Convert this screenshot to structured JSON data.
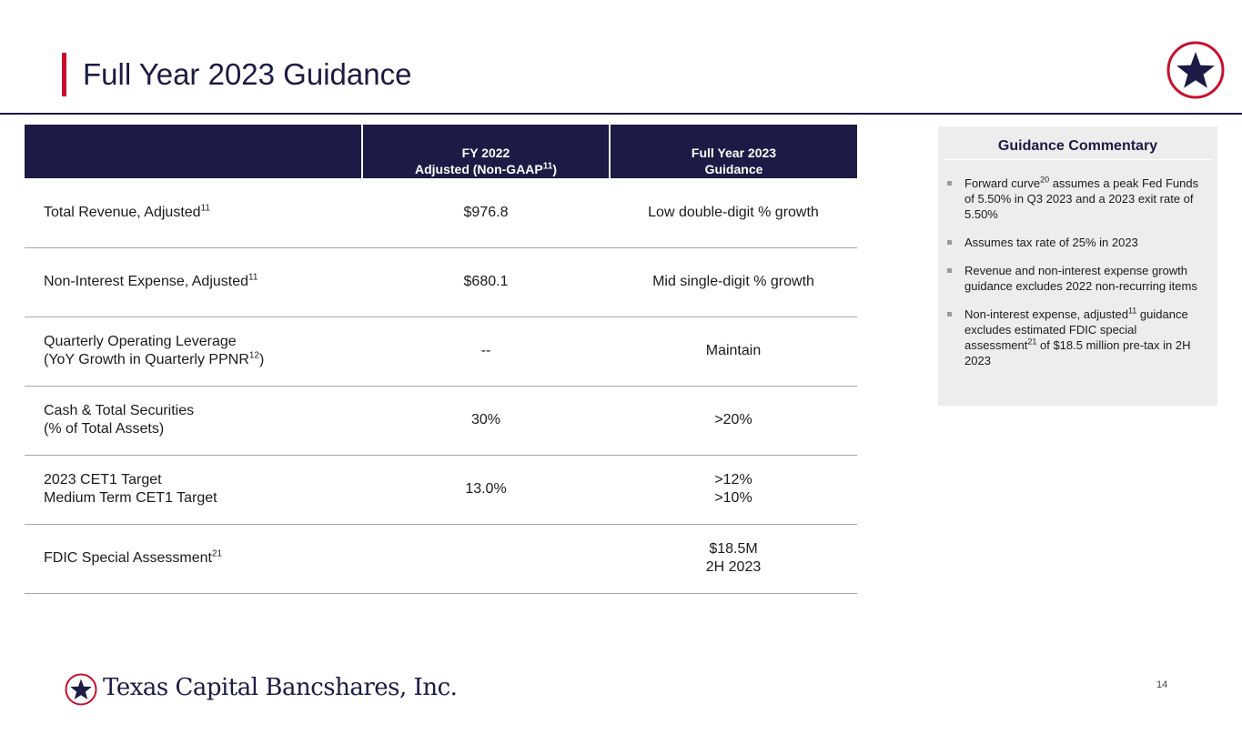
{
  "header": {
    "title": "Full Year 2023 Guidance",
    "logo_icon": "star-circle-icon"
  },
  "colors": {
    "navy": "#1b1b45",
    "accent_red": "#c8102e",
    "panel_gray": "#ededed",
    "rule_gray": "#a6a6a6"
  },
  "table": {
    "headers": {
      "fy2022": {
        "line1": "FY 2022",
        "line2": "Adjusted (Non-GAAP",
        "sup": "11",
        "close": ")"
      },
      "fy2023": {
        "line1": "Full Year 2023",
        "line2": "Guidance"
      }
    },
    "rows": [
      {
        "metric": [
          "Total Revenue, Adjusted"
        ],
        "metric_sup": [
          "11"
        ],
        "metric_tail": [
          ""
        ],
        "fy2022": "$976.8",
        "guidance": [
          "Low double-digit % growth"
        ]
      },
      {
        "metric": [
          "Non-Interest Expense, Adjusted"
        ],
        "metric_sup": [
          "11"
        ],
        "metric_tail": [
          ""
        ],
        "fy2022": "$680.1",
        "guidance": [
          "Mid single-digit % growth"
        ]
      },
      {
        "metric": [
          "Quarterly Operating Leverage",
          "(YoY Growth in Quarterly PPNR"
        ],
        "metric_sup": [
          "",
          "12"
        ],
        "metric_tail": [
          "",
          ")"
        ],
        "fy2022": "--",
        "guidance": [
          "Maintain"
        ]
      },
      {
        "metric": [
          "Cash & Total Securities",
          "(% of Total Assets)"
        ],
        "metric_sup": [
          "",
          ""
        ],
        "metric_tail": [
          "",
          ""
        ],
        "fy2022": "30%",
        "guidance": [
          ">20%"
        ]
      },
      {
        "metric": [
          "2023 CET1 Target",
          "Medium Term CET1 Target"
        ],
        "metric_sup": [
          "",
          ""
        ],
        "metric_tail": [
          "",
          ""
        ],
        "fy2022": "13.0%",
        "guidance": [
          ">12%",
          ">10%"
        ]
      },
      {
        "metric": [
          "FDIC Special Assessment"
        ],
        "metric_sup": [
          "21"
        ],
        "metric_tail": [
          ""
        ],
        "fy2022": "",
        "guidance": [
          "$18.5M",
          "2H 2023"
        ]
      }
    ]
  },
  "commentary": {
    "title": "Guidance Commentary",
    "bullets": [
      {
        "a": "Forward curve",
        "sup": "20",
        "b": " assumes a peak Fed Funds of 5.50% in Q3 2023 and a 2023 exit rate of 5.50%",
        "sup2": "",
        "c": ""
      },
      {
        "a": "Assumes tax rate of 25% in 2023",
        "sup": "",
        "b": "",
        "sup2": "",
        "c": ""
      },
      {
        "a": "Revenue and non-interest expense growth guidance excludes 2022 non-recurring items",
        "sup": "",
        "b": "",
        "sup2": "",
        "c": ""
      },
      {
        "a": "Non-interest expense, adjusted",
        "sup": "11",
        "b": " guidance excludes estimated FDIC special assessment",
        "sup2": "21",
        "c": " of $18.5 million pre-tax in 2H 2023"
      }
    ]
  },
  "footer": {
    "company": "Texas Capital Bancshares, Inc.",
    "logo_icon": "star-circle-icon",
    "page_number": "14"
  }
}
